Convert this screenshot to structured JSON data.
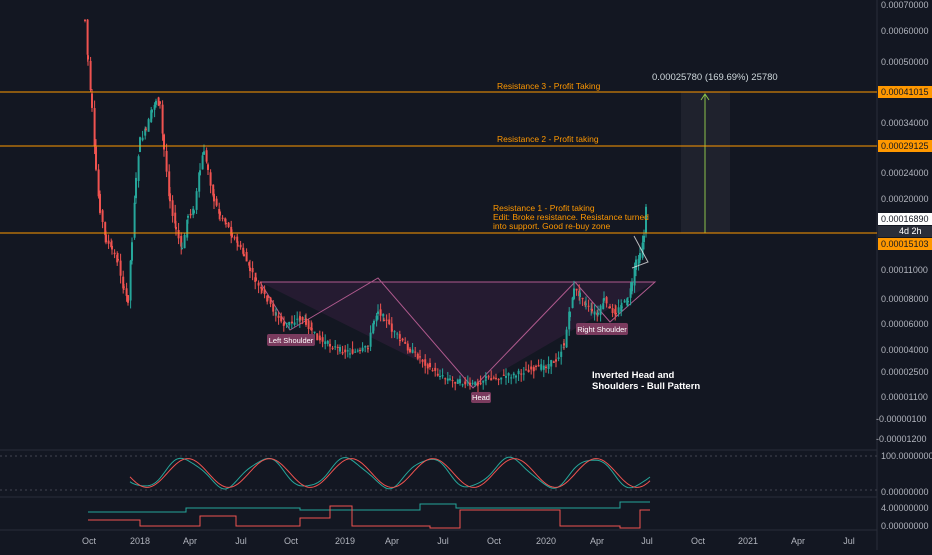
{
  "chart_data": {
    "type": "candlestick",
    "title": "",
    "price_axis": {
      "ticks": [
        "0.00070000",
        "0.00060000",
        "0.00050000",
        "0.00041015",
        "0.00034000",
        "0.00029125",
        "0.00024000",
        "0.00020000",
        "0.00016890",
        "4d 2h",
        "0.00015103",
        "0.00011000",
        "0.00008000",
        "0.00006000",
        "0.00004000",
        "0.00002500",
        "0.00001100",
        "-0.00000100",
        "-0.00001200"
      ]
    },
    "time_axis": {
      "labels": [
        "Oct",
        "2018",
        "Apr",
        "Jul",
        "Oct",
        "2019",
        "Apr",
        "Jul",
        "Oct",
        "2020",
        "Apr",
        "Jul",
        "Oct",
        "2021",
        "Apr",
        "Jul"
      ]
    },
    "current_price": "0.00016890",
    "countdown": "4d 2h",
    "levels": [
      {
        "price": "0.00041015",
        "label": "Resistance 3 - Profit Taking"
      },
      {
        "price": "0.00029125",
        "label": "Resistance 2 - Profit taking"
      },
      {
        "price": "0.00015103",
        "label": "Resistance 1 - Profit taking",
        "note1": "Edit: Broke resistance. Resistance turned",
        "note2": "into support. Good re-buy zone"
      }
    ],
    "measure_label": "0.00025780 (169.69%) 25780",
    "pattern": {
      "title1": "Inverted Head and",
      "title2": "Shoulders - Bull Pattern",
      "left_shoulder": "Left Shoulder",
      "head": "Head",
      "right_shoulder": "Right Shoulder"
    },
    "oscillator1": {
      "ticks": [
        "100.00000000",
        "0.00000000"
      ]
    },
    "oscillator2": {
      "ticks": [
        "4.00000000",
        "0.00000000"
      ]
    },
    "colors": {
      "background": "#131722",
      "up": "#26a69a",
      "down": "#ef5350",
      "level": "#ff9800",
      "pattern": "#9c4d7c",
      "measure": "#8bc34a"
    }
  }
}
